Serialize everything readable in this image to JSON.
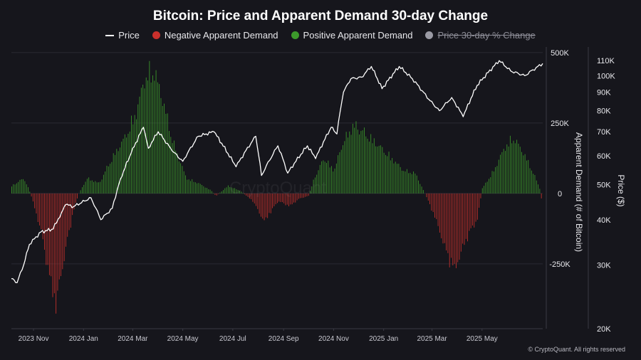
{
  "title": "Bitcoin: Price and Apparent Demand 30-day Change",
  "legend": [
    {
      "label": "Price",
      "color": "#ffffff",
      "marker": "line",
      "enabled": true
    },
    {
      "label": "Negative Apparent Demand",
      "color": "#c9302c",
      "marker": "dot",
      "enabled": true
    },
    {
      "label": "Positive Apparent Demand",
      "color": "#3c9a2b",
      "marker": "dot",
      "enabled": true
    },
    {
      "label": "Price 30-day % Change",
      "color": "#9a9aa4",
      "marker": "dot",
      "enabled": false
    }
  ],
  "watermark": "CryptoQuant",
  "footer": "© CryptoQuant. All rights reserved",
  "chart_data": {
    "type": "bar+line",
    "x_tick_labels": [
      "2023 Nov",
      "2024 Jan",
      "2024 Mar",
      "2024 May",
      "2024 Jul",
      "2024 Sep",
      "2024 Nov",
      "2025 Jan",
      "2025 Mar",
      "2025 May"
    ],
    "x_tick_dates": [
      "2023-11-01",
      "2024-01-01",
      "2024-03-01",
      "2024-05-01",
      "2024-07-01",
      "2024-09-01",
      "2024-11-01",
      "2025-01-01",
      "2025-03-01",
      "2025-05-01"
    ],
    "x_range": [
      "2023-10-05",
      "2025-07-14"
    ],
    "demand_axis": {
      "label": "Apparent Demand (# of Bitcoin)",
      "ticks": [
        500000,
        250000,
        0,
        -250000
      ],
      "tick_labels": [
        "500K",
        "250K",
        "0",
        "-250K"
      ],
      "range": [
        -480000,
        520000
      ]
    },
    "price_axis": {
      "label": "Price ($)",
      "scale": "log",
      "ticks": [
        110000,
        100000,
        90000,
        80000,
        70000,
        60000,
        50000,
        40000,
        30000,
        20000
      ],
      "tick_labels": [
        "110K",
        "100K",
        "90K",
        "80K",
        "70K",
        "60K",
        "50K",
        "40K",
        "30K",
        "20K"
      ],
      "range": [
        20000,
        120000
      ]
    },
    "demand_series": [
      {
        "date": "2023-10-05",
        "value": 30000
      },
      {
        "date": "2023-10-20",
        "value": 60000
      },
      {
        "date": "2023-10-28",
        "value": 0
      },
      {
        "date": "2023-11-10",
        "value": -150000
      },
      {
        "date": "2023-11-20",
        "value": -330000
      },
      {
        "date": "2023-11-28",
        "value": -440000
      },
      {
        "date": "2023-12-08",
        "value": -250000
      },
      {
        "date": "2023-12-20",
        "value": -60000
      },
      {
        "date": "2023-12-26",
        "value": 0
      },
      {
        "date": "2024-01-05",
        "value": 60000
      },
      {
        "date": "2024-01-20",
        "value": 40000
      },
      {
        "date": "2024-02-01",
        "value": 120000
      },
      {
        "date": "2024-02-20",
        "value": 220000
      },
      {
        "date": "2024-03-05",
        "value": 320000
      },
      {
        "date": "2024-03-15",
        "value": 450000
      },
      {
        "date": "2024-03-26",
        "value": 490000
      },
      {
        "date": "2024-04-05",
        "value": 380000
      },
      {
        "date": "2024-04-20",
        "value": 190000
      },
      {
        "date": "2024-05-05",
        "value": 60000
      },
      {
        "date": "2024-05-20",
        "value": 40000
      },
      {
        "date": "2024-06-05",
        "value": 10000
      },
      {
        "date": "2024-06-10",
        "value": -10000
      },
      {
        "date": "2024-06-25",
        "value": 30000
      },
      {
        "date": "2024-07-10",
        "value": 10000
      },
      {
        "date": "2024-07-25",
        "value": -30000
      },
      {
        "date": "2024-08-08",
        "value": -110000
      },
      {
        "date": "2024-08-25",
        "value": -30000
      },
      {
        "date": "2024-09-08",
        "value": -50000
      },
      {
        "date": "2024-09-20",
        "value": -20000
      },
      {
        "date": "2024-10-01",
        "value": -10000
      },
      {
        "date": "2024-10-08",
        "value": 60000
      },
      {
        "date": "2024-10-20",
        "value": 140000
      },
      {
        "date": "2024-11-01",
        "value": 90000
      },
      {
        "date": "2024-11-12",
        "value": 200000
      },
      {
        "date": "2024-11-25",
        "value": 270000
      },
      {
        "date": "2024-12-08",
        "value": 240000
      },
      {
        "date": "2024-12-25",
        "value": 190000
      },
      {
        "date": "2025-01-10",
        "value": 140000
      },
      {
        "date": "2025-01-25",
        "value": 90000
      },
      {
        "date": "2025-02-08",
        "value": 80000
      },
      {
        "date": "2025-02-20",
        "value": 0
      },
      {
        "date": "2025-03-05",
        "value": -100000
      },
      {
        "date": "2025-03-20",
        "value": -250000
      },
      {
        "date": "2025-03-28",
        "value": -300000
      },
      {
        "date": "2025-04-10",
        "value": -190000
      },
      {
        "date": "2025-04-25",
        "value": -100000
      },
      {
        "date": "2025-05-01",
        "value": 20000
      },
      {
        "date": "2025-05-15",
        "value": 90000
      },
      {
        "date": "2025-05-28",
        "value": 180000
      },
      {
        "date": "2025-06-08",
        "value": 220000
      },
      {
        "date": "2025-06-20",
        "value": 160000
      },
      {
        "date": "2025-07-01",
        "value": 90000
      },
      {
        "date": "2025-07-10",
        "value": 20000
      },
      {
        "date": "2025-07-13",
        "value": -40000
      }
    ],
    "price_series": [
      {
        "date": "2023-10-05",
        "value": 27500
      },
      {
        "date": "2023-10-12",
        "value": 26800
      },
      {
        "date": "2023-10-20",
        "value": 30000
      },
      {
        "date": "2023-10-27",
        "value": 34200
      },
      {
        "date": "2023-11-10",
        "value": 37000
      },
      {
        "date": "2023-11-25",
        "value": 37700
      },
      {
        "date": "2023-12-05",
        "value": 41800
      },
      {
        "date": "2023-12-10",
        "value": 44000
      },
      {
        "date": "2023-12-20",
        "value": 43500
      },
      {
        "date": "2024-01-10",
        "value": 46000
      },
      {
        "date": "2024-01-22",
        "value": 40000
      },
      {
        "date": "2024-02-05",
        "value": 43000
      },
      {
        "date": "2024-02-15",
        "value": 51800
      },
      {
        "date": "2024-02-28",
        "value": 61000
      },
      {
        "date": "2024-03-14",
        "value": 72000
      },
      {
        "date": "2024-03-20",
        "value": 63000
      },
      {
        "date": "2024-04-01",
        "value": 70000
      },
      {
        "date": "2024-04-18",
        "value": 62000
      },
      {
        "date": "2024-05-01",
        "value": 58000
      },
      {
        "date": "2024-05-20",
        "value": 68000
      },
      {
        "date": "2024-06-08",
        "value": 70000
      },
      {
        "date": "2024-06-25",
        "value": 61000
      },
      {
        "date": "2024-07-05",
        "value": 56000
      },
      {
        "date": "2024-07-29",
        "value": 68000
      },
      {
        "date": "2024-08-05",
        "value": 53000
      },
      {
        "date": "2024-08-25",
        "value": 64000
      },
      {
        "date": "2024-09-06",
        "value": 53800
      },
      {
        "date": "2024-09-30",
        "value": 64000
      },
      {
        "date": "2024-10-10",
        "value": 59000
      },
      {
        "date": "2024-10-29",
        "value": 72000
      },
      {
        "date": "2024-11-05",
        "value": 69000
      },
      {
        "date": "2024-11-13",
        "value": 90000
      },
      {
        "date": "2024-11-22",
        "value": 98000
      },
      {
        "date": "2024-12-05",
        "value": 99000
      },
      {
        "date": "2024-12-17",
        "value": 106000
      },
      {
        "date": "2024-12-30",
        "value": 92000
      },
      {
        "date": "2025-01-20",
        "value": 106000
      },
      {
        "date": "2025-02-05",
        "value": 98000
      },
      {
        "date": "2025-02-25",
        "value": 86000
      },
      {
        "date": "2025-03-10",
        "value": 80000
      },
      {
        "date": "2025-03-25",
        "value": 87000
      },
      {
        "date": "2025-04-08",
        "value": 77000
      },
      {
        "date": "2025-04-25",
        "value": 94000
      },
      {
        "date": "2025-05-22",
        "value": 110000
      },
      {
        "date": "2025-06-05",
        "value": 103000
      },
      {
        "date": "2025-06-22",
        "value": 100000
      },
      {
        "date": "2025-07-14",
        "value": 108000
      }
    ],
    "grid": true,
    "legend_position": "top-center"
  }
}
